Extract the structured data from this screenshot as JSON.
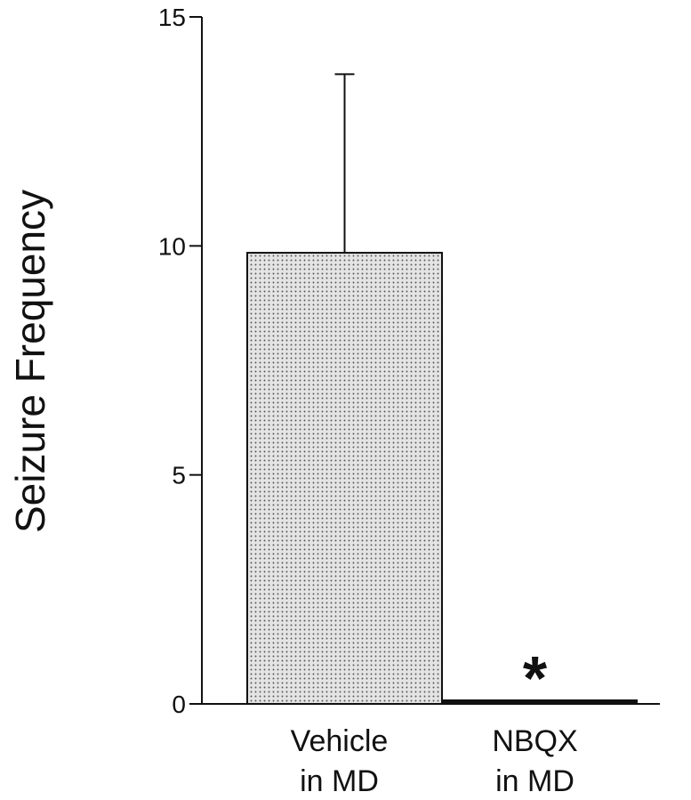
{
  "chart_data": {
    "type": "bar",
    "categories": [
      [
        "Vehicle",
        "in MD"
      ],
      [
        "NBQX",
        "in MD"
      ]
    ],
    "values": [
      9.85,
      0.05
    ],
    "error": [
      3.9,
      0
    ],
    "ylabel": "Seizure Frequency",
    "ylim": [
      0,
      15
    ],
    "yticks": [
      0,
      5,
      10,
      15
    ],
    "grid": false,
    "legend": "none",
    "annotations": [
      {
        "category_index": 1,
        "text": "*"
      }
    ],
    "colors": {
      "bar_fill": "#e4e4e4",
      "bar_dots": "#555555",
      "axis": "#111111"
    }
  }
}
